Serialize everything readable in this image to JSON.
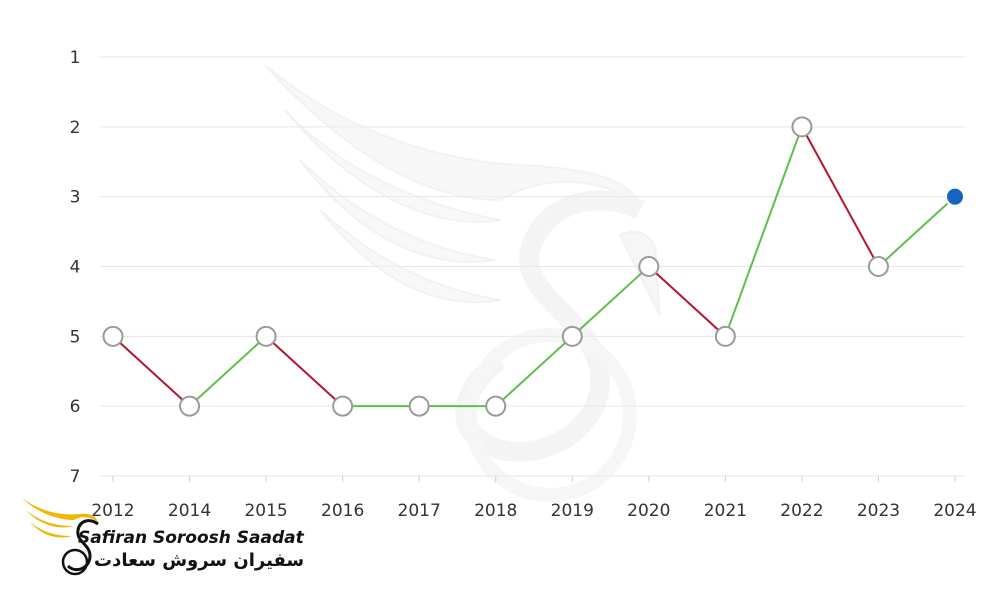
{
  "chart_data": {
    "type": "line",
    "categories": [
      "2012",
      "2014",
      "2015",
      "2016",
      "2017",
      "2018",
      "2019",
      "2020",
      "2021",
      "2022",
      "2023",
      "2024"
    ],
    "values": [
      5,
      6,
      5,
      6,
      6,
      6,
      5,
      4,
      5,
      2,
      4,
      3
    ],
    "yticks": [
      "1",
      "2",
      "3",
      "4",
      "5",
      "6",
      "7"
    ],
    "ylim": [
      1,
      7
    ],
    "y_inverted": true,
    "grid": true,
    "title": "",
    "xlabel": "",
    "ylabel": "",
    "colors": {
      "up": "#5cc04a",
      "down": "#b5162e",
      "grid": "#e6e6e6",
      "marker_fill": "#ffffff",
      "marker_stroke": "#9a9a9a",
      "last_marker": "#1565c0"
    }
  },
  "watermark": {
    "icon": "bird-wing-logo-icon"
  },
  "logo": {
    "icon": "bird-wing-logo-icon",
    "brand_en": "Safiran Soroosh Saadat",
    "brand_fa": "سفیران سروش سعادت",
    "colors": {
      "wing": "#f2b705",
      "text": "#111111"
    }
  }
}
